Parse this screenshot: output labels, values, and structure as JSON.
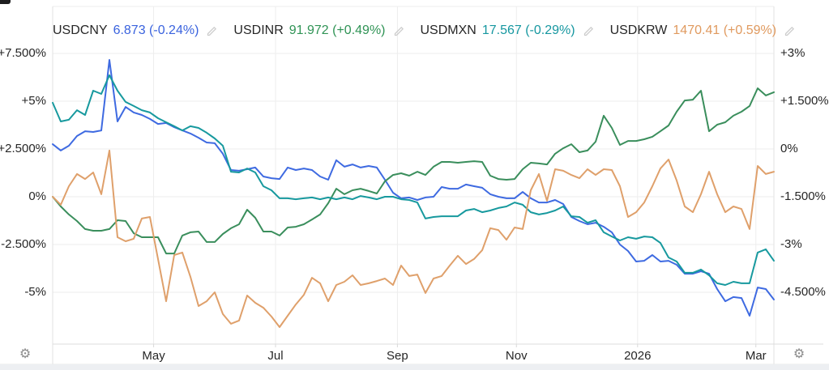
{
  "legend": {
    "items": [
      {
        "symbol": "USDCNY",
        "quote": "6.873 (-0.24%)",
        "color": "#3a63de"
      },
      {
        "symbol": "USDINR",
        "quote": "91.972 (+0.49%)",
        "color": "#2f9355"
      },
      {
        "symbol": "USDMXN",
        "quote": "17.567 (-0.29%)",
        "color": "#1697a0"
      },
      {
        "symbol": "USDKRW",
        "quote": "1470.41 (+0.59%)",
        "color": "#e09a5f"
      }
    ]
  },
  "icons": {
    "gear": "⚙",
    "pencil": "edit-pencil"
  },
  "chart_data": {
    "type": "line",
    "title": "",
    "xlabel": "",
    "ylabel": "",
    "grid": true,
    "legend_position": "top-left",
    "x_axis": {
      "labels": [
        "May",
        "Jul",
        "Sep",
        "Nov",
        "2026",
        "Mar"
      ],
      "fracs": [
        0.14,
        0.309,
        0.478,
        0.643,
        0.811,
        0.975
      ]
    },
    "y_axis_left": {
      "labels": [
        "+7.500%",
        "+5%",
        "+2.500%",
        "0%",
        "-2.500%",
        "-5%"
      ],
      "values": [
        7.5,
        5,
        2.5,
        0,
        -2.5,
        -5
      ],
      "range_top": 9.96,
      "range_bottom": -7.71
    },
    "y_axis_right": {
      "labels": [
        "+3%",
        "+1.500%",
        "0%",
        "-1.500%",
        "-3%",
        "-4.500%"
      ]
    },
    "value_scale": "cumulative percent change read against the left axis",
    "series": [
      {
        "name": "USDCNY",
        "color": "#3e6ae1",
        "values": [
          2.75,
          2.42,
          2.67,
          3.18,
          3.43,
          3.39,
          3.47,
          7.16,
          3.94,
          4.7,
          4.41,
          4.28,
          4.07,
          3.81,
          3.86,
          3.64,
          3.47,
          3.31,
          3.09,
          2.84,
          2.8,
          2.25,
          1.4,
          1.36,
          1.44,
          1.53,
          1.06,
          0.97,
          0.93,
          1.53,
          1.4,
          1.48,
          1.4,
          1.06,
          0.89,
          1.91,
          1.57,
          1.69,
          1.53,
          1.61,
          1.53,
          0.89,
          0.21,
          -0.08,
          -0.04,
          -0.17,
          -0.04,
          0.0,
          0.51,
          0.42,
          0.42,
          0.64,
          0.55,
          0.47,
          0.13,
          0.0,
          -0.08,
          -0.08,
          0.25,
          -0.08,
          -0.3,
          -0.3,
          -0.17,
          -0.38,
          -1.06,
          -1.27,
          -1.44,
          -1.36,
          -1.57,
          -1.86,
          -2.5,
          -2.84,
          -3.39,
          -3.35,
          -3.05,
          -3.39,
          -3.35,
          -3.56,
          -4.03,
          -4.03,
          -3.9,
          -4.03,
          -4.83,
          -5.47,
          -5.25,
          -5.3,
          -6.23,
          -4.75,
          -4.83,
          -5.38
        ]
      },
      {
        "name": "USDINR",
        "color": "#3a8e5c",
        "values": [
          0.0,
          -0.51,
          -0.93,
          -1.27,
          -1.69,
          -1.78,
          -1.78,
          -1.69,
          -1.23,
          -1.27,
          -1.91,
          -2.12,
          -2.12,
          -2.12,
          -2.97,
          -2.97,
          -2.03,
          -1.86,
          -1.82,
          -2.37,
          -2.37,
          -1.95,
          -1.65,
          -1.44,
          -0.68,
          -1.1,
          -1.82,
          -1.82,
          -2.03,
          -1.61,
          -1.57,
          -1.44,
          -1.19,
          -0.93,
          -0.34,
          0.42,
          0.13,
          0.34,
          0.42,
          0.3,
          0.17,
          0.81,
          1.14,
          1.23,
          1.1,
          1.31,
          1.14,
          1.57,
          1.82,
          1.82,
          1.78,
          1.82,
          1.86,
          1.82,
          1.1,
          0.93,
          0.89,
          0.93,
          1.44,
          1.78,
          1.74,
          1.69,
          2.25,
          2.54,
          2.75,
          2.33,
          2.42,
          2.88,
          4.24,
          3.6,
          2.71,
          2.92,
          2.92,
          3.01,
          3.14,
          3.43,
          3.73,
          4.45,
          5.04,
          5.08,
          5.55,
          3.43,
          3.77,
          3.9,
          4.24,
          4.45,
          4.75,
          5.68,
          5.3,
          5.47
        ]
      },
      {
        "name": "USDMXN",
        "color": "#17999e",
        "values": [
          4.92,
          3.94,
          4.03,
          4.53,
          4.28,
          5.55,
          5.38,
          6.36,
          5.55,
          4.96,
          4.75,
          4.53,
          4.41,
          4.11,
          3.9,
          3.69,
          3.47,
          3.69,
          3.6,
          3.35,
          3.05,
          2.67,
          1.31,
          1.27,
          1.48,
          1.27,
          0.55,
          0.34,
          -0.08,
          -0.08,
          -0.13,
          -0.08,
          -0.04,
          -0.13,
          -0.04,
          -0.13,
          -0.04,
          -0.13,
          0.04,
          -0.04,
          -0.13,
          0.0,
          0.0,
          -0.13,
          -0.17,
          -0.3,
          -1.14,
          -1.06,
          -1.02,
          -1.02,
          -1.02,
          -0.72,
          -0.64,
          -0.81,
          -0.72,
          -0.59,
          -0.51,
          -0.3,
          -0.42,
          -0.81,
          -0.93,
          -0.85,
          -0.72,
          -0.51,
          -1.02,
          -1.06,
          -1.36,
          -1.23,
          -1.86,
          -2.08,
          -2.29,
          -2.12,
          -2.2,
          -2.08,
          -2.12,
          -2.42,
          -3.18,
          -3.39,
          -3.98,
          -3.98,
          -3.81,
          -4.11,
          -4.53,
          -4.62,
          -4.45,
          -4.53,
          -4.53,
          -2.92,
          -2.75,
          -3.35
        ]
      },
      {
        "name": "USDKRW",
        "color": "#dfa06b",
        "values": [
          0.0,
          -0.42,
          0.55,
          1.19,
          0.93,
          1.27,
          0.13,
          2.42,
          -2.12,
          -2.33,
          -2.2,
          -1.14,
          -1.06,
          -3.26,
          -5.47,
          -3.05,
          -2.92,
          -4.19,
          -5.72,
          -5.47,
          -5.0,
          -6.14,
          -6.65,
          -6.48,
          -5.17,
          -5.55,
          -5.81,
          -6.27,
          -6.82,
          -6.23,
          -5.64,
          -5.13,
          -4.24,
          -4.53,
          -5.47,
          -4.62,
          -4.45,
          -4.11,
          -4.62,
          -4.53,
          -4.41,
          -4.28,
          -4.62,
          -3.6,
          -4.15,
          -4.07,
          -5.04,
          -4.28,
          -4.15,
          -3.6,
          -3.09,
          -3.52,
          -3.26,
          -2.8,
          -1.65,
          -1.74,
          -2.25,
          -1.61,
          -1.69,
          0.34,
          1.19,
          -0.21,
          1.44,
          1.36,
          1.14,
          0.97,
          1.44,
          1.14,
          1.44,
          1.4,
          0.55,
          -1.06,
          -0.81,
          -0.3,
          0.55,
          1.48,
          1.95,
          0.85,
          -0.51,
          -0.81,
          0.13,
          1.31,
          0.13,
          -0.81,
          -0.51,
          -0.64,
          -1.69,
          1.61,
          1.19,
          1.31
        ]
      }
    ]
  }
}
